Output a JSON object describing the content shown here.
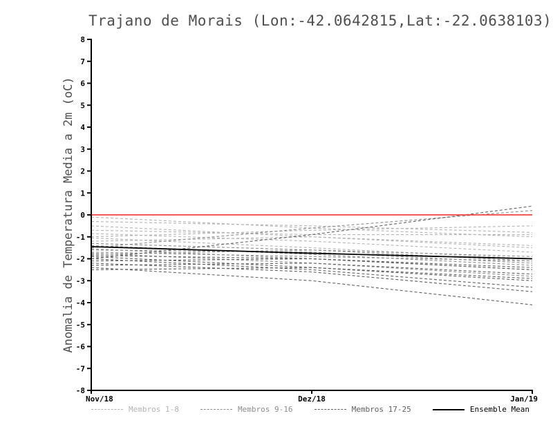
{
  "title": "Trajano de Morais (Lon:-42.0642815,Lat:-22.0638103)",
  "chart_data": {
    "type": "line",
    "x": [
      "Nov/18",
      "Dez/18",
      "Jan/19"
    ],
    "ylabel": "Anomalia de Temperatura Media a 2m (oC)",
    "ylim": [
      -8,
      8
    ],
    "ytick_step": 1,
    "grid": false,
    "legend_position": "bottom",
    "zero_line": {
      "y": 0,
      "color": "#f0453c"
    },
    "groups": [
      {
        "name": "Membros 1-8",
        "color": "#b3b3b3",
        "dash": "4 3",
        "members": [
          [
            -0.1,
            -0.6,
            -1.0
          ],
          [
            -0.3,
            -0.5,
            -0.8
          ],
          [
            -0.5,
            -1.0,
            -1.5
          ],
          [
            -0.7,
            -0.9,
            -0.9
          ],
          [
            -0.85,
            -1.2,
            -1.7
          ],
          [
            -1.0,
            -0.7,
            -0.5
          ],
          [
            -1.05,
            -1.5,
            -2.0
          ],
          [
            -1.2,
            -1.0,
            -1.4
          ]
        ]
      },
      {
        "name": "Membros 9-16",
        "color": "#8c8c8c",
        "dash": "4 3",
        "members": [
          [
            -1.3,
            -1.6,
            -2.1
          ],
          [
            -1.4,
            -1.8,
            -2.3
          ],
          [
            -1.5,
            -0.6,
            0.2
          ],
          [
            -1.55,
            -2.0,
            -2.5
          ],
          [
            -1.6,
            -1.7,
            -2.2
          ],
          [
            -1.7,
            -1.9,
            -2.1
          ],
          [
            -1.75,
            -2.2,
            -2.8
          ],
          [
            -1.8,
            -1.6,
            -1.9
          ]
        ]
      },
      {
        "name": "Membros 17-25",
        "color": "#5f5f5f",
        "dash": "4 3",
        "members": [
          [
            -1.85,
            -2.0,
            -2.4
          ],
          [
            -1.9,
            -2.4,
            -3.0
          ],
          [
            -2.0,
            -0.9,
            0.4
          ],
          [
            -2.0,
            -2.5,
            -3.3
          ],
          [
            -2.1,
            -2.0,
            -2.5
          ],
          [
            -2.2,
            -2.6,
            -3.5
          ],
          [
            -2.3,
            -2.2,
            -2.7
          ],
          [
            -2.4,
            -3.0,
            -4.1
          ],
          [
            -2.5,
            -2.4,
            -2.9
          ]
        ]
      }
    ],
    "mean": {
      "name": "Ensemble Mean",
      "color": "#000000",
      "values": [
        -1.45,
        -1.75,
        -2.0
      ]
    }
  }
}
